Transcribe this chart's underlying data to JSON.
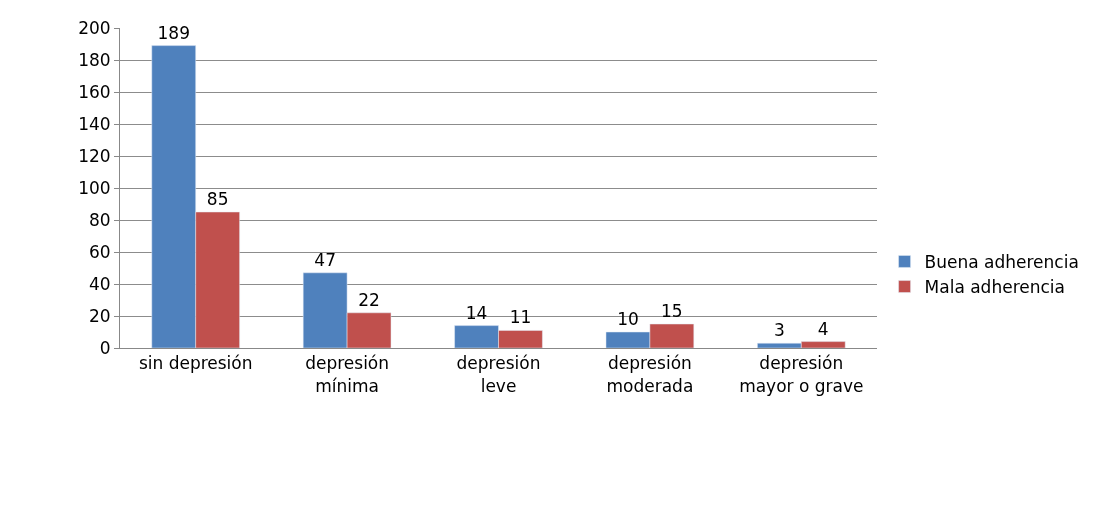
{
  "chart_data": {
    "type": "bar",
    "categories": [
      "sin depresión",
      "depresión mínima",
      "depresión leve",
      "depresión moderada",
      "depresión mayor o grave"
    ],
    "series": [
      {
        "name": "Buena adherencia",
        "color": "#4f81bd",
        "values": [
          189,
          47,
          14,
          10,
          3
        ]
      },
      {
        "name": "Mala adherencia",
        "color": "#c0504d",
        "values": [
          85,
          22,
          11,
          15,
          4
        ]
      }
    ],
    "ylim": [
      0,
      200
    ],
    "yticks": [
      0,
      20,
      40,
      60,
      80,
      100,
      120,
      140,
      160,
      180,
      200
    ],
    "grid": "y",
    "legend": "right",
    "data_labels": true
  }
}
